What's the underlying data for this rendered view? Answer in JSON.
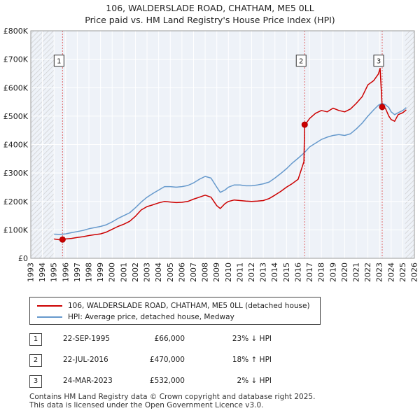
{
  "chart_data": {
    "type": "line",
    "title": "106, WALDERSLADE ROAD, CHATHAM, ME5 0LL",
    "subtitle": "Price paid vs. HM Land Registry's House Price Index (HPI)",
    "xlabel": "",
    "ylabel": "",
    "xlim": [
      1993,
      2026
    ],
    "ylim": [
      0,
      800000
    ],
    "y_ticks": [
      0,
      100000,
      200000,
      300000,
      400000,
      500000,
      600000,
      700000,
      800000
    ],
    "y_tick_labels": [
      "£0",
      "£100K",
      "£200K",
      "£300K",
      "£400K",
      "£500K",
      "£600K",
      "£700K",
      "£800K"
    ],
    "x_ticks": [
      1993,
      1994,
      1995,
      1996,
      1997,
      1998,
      1999,
      2000,
      2001,
      2002,
      2003,
      2004,
      2005,
      2006,
      2007,
      2008,
      2009,
      2010,
      2011,
      2012,
      2013,
      2014,
      2015,
      2016,
      2017,
      2018,
      2019,
      2020,
      2021,
      2022,
      2023,
      2024,
      2025,
      2026
    ],
    "x_tick_labels": [
      "1993",
      "1994",
      "1995",
      "1996",
      "1997",
      "1998",
      "1999",
      "2000",
      "2001",
      "2002",
      "2003",
      "2004",
      "2005",
      "2006",
      "2007",
      "2008",
      "2009",
      "2010",
      "2011",
      "2012",
      "2013",
      "2014",
      "2015",
      "2016",
      "2017",
      "2018",
      "2019",
      "2020",
      "2021",
      "2022",
      "2023",
      "2024",
      "2025",
      "2026"
    ],
    "grid": true,
    "hatched_ranges": [
      [
        1993,
        1995.0
      ],
      [
        2025.2,
        2026
      ]
    ],
    "series": [
      {
        "name": "106, WALDERSLADE ROAD, CHATHAM, ME5 0LL (detached house)",
        "color": "#cc0000",
        "x": [
          1995.0,
          1995.5,
          1995.73,
          1996.0,
          1996.5,
          1997.0,
          1997.5,
          1998.0,
          1998.5,
          1999.0,
          1999.5,
          2000.0,
          2000.5,
          2001.0,
          2001.5,
          2002.0,
          2002.5,
          2003.0,
          2003.5,
          2004.0,
          2004.5,
          2005.0,
          2005.5,
          2006.0,
          2006.5,
          2007.0,
          2007.5,
          2008.0,
          2008.5,
          2009.0,
          2009.3,
          2009.7,
          2010.0,
          2010.5,
          2011.0,
          2011.5,
          2012.0,
          2012.5,
          2013.0,
          2013.5,
          2014.0,
          2014.5,
          2015.0,
          2015.5,
          2016.0,
          2016.5,
          2016.56,
          2016.6,
          2017.0,
          2017.5,
          2018.0,
          2018.5,
          2019.0,
          2019.5,
          2020.0,
          2020.5,
          2021.0,
          2021.5,
          2022.0,
          2022.5,
          2022.9,
          2023.05,
          2023.23,
          2023.5,
          2023.8,
          2024.0,
          2024.3,
          2024.6,
          2025.0,
          2025.3
        ],
        "values": [
          68000,
          65000,
          66000,
          68000,
          70000,
          73000,
          76000,
          80000,
          83000,
          86000,
          92000,
          102000,
          112000,
          120000,
          130000,
          148000,
          170000,
          182000,
          188000,
          195000,
          200000,
          198000,
          196000,
          197000,
          200000,
          208000,
          215000,
          222000,
          215000,
          185000,
          175000,
          192000,
          200000,
          205000,
          203000,
          201000,
          200000,
          201000,
          203000,
          210000,
          222000,
          235000,
          250000,
          263000,
          278000,
          340000,
          470000,
          470000,
          492000,
          510000,
          520000,
          515000,
          528000,
          520000,
          515000,
          525000,
          545000,
          568000,
          610000,
          625000,
          648000,
          668000,
          532000,
          528000,
          500000,
          488000,
          482000,
          505000,
          512000,
          522000
        ]
      },
      {
        "name": "HPI: Average price, detached house, Medway",
        "color": "#6699cc",
        "x": [
          1995.0,
          1995.5,
          1996.0,
          1996.5,
          1997.0,
          1997.5,
          1998.0,
          1998.5,
          1999.0,
          1999.5,
          2000.0,
          2000.5,
          2001.0,
          2001.5,
          2002.0,
          2002.5,
          2003.0,
          2003.5,
          2004.0,
          2004.5,
          2005.0,
          2005.5,
          2006.0,
          2006.5,
          2007.0,
          2007.5,
          2008.0,
          2008.5,
          2009.0,
          2009.3,
          2009.7,
          2010.0,
          2010.5,
          2011.0,
          2011.5,
          2012.0,
          2012.5,
          2013.0,
          2013.5,
          2014.0,
          2014.5,
          2015.0,
          2015.5,
          2016.0,
          2016.5,
          2017.0,
          2017.5,
          2018.0,
          2018.5,
          2019.0,
          2019.5,
          2020.0,
          2020.5,
          2021.0,
          2021.5,
          2022.0,
          2022.5,
          2022.9,
          2023.2,
          2023.5,
          2023.8,
          2024.0,
          2024.3,
          2024.6,
          2025.0,
          2025.3
        ],
        "values": [
          85000,
          84000,
          86000,
          90000,
          94000,
          98000,
          104000,
          108000,
          112000,
          118000,
          128000,
          140000,
          150000,
          160000,
          178000,
          198000,
          215000,
          228000,
          240000,
          252000,
          252000,
          250000,
          252000,
          256000,
          265000,
          278000,
          288000,
          282000,
          250000,
          232000,
          240000,
          250000,
          258000,
          258000,
          255000,
          255000,
          258000,
          262000,
          268000,
          282000,
          298000,
          315000,
          335000,
          352000,
          370000,
          392000,
          405000,
          418000,
          426000,
          432000,
          435000,
          432000,
          438000,
          455000,
          475000,
          500000,
          522000,
          538000,
          545000,
          540000,
          530000,
          515000,
          505000,
          512000,
          520000,
          530000
        ]
      }
    ],
    "markers": [
      {
        "label": "1",
        "x": 1995.73,
        "value": 66000,
        "box_value": 690000
      },
      {
        "label": "2",
        "x": 2016.56,
        "value": 470000,
        "box_value": 690000
      },
      {
        "label": "3",
        "x": 2023.23,
        "value": 532000,
        "box_value": 690000
      }
    ],
    "legend": {
      "position": "below",
      "entries": [
        {
          "label": "106, WALDERSLADE ROAD, CHATHAM, ME5 0LL (detached house)",
          "color": "#cc0000"
        },
        {
          "label": "HPI: Average price, detached house, Medway",
          "color": "#6699cc"
        }
      ]
    }
  },
  "sales": [
    {
      "num": "1",
      "date": "22-SEP-1995",
      "price": "£66,000",
      "delta": "23% ↓ HPI"
    },
    {
      "num": "2",
      "date": "22-JUL-2016",
      "price": "£470,000",
      "delta": "18% ↑ HPI"
    },
    {
      "num": "3",
      "date": "24-MAR-2023",
      "price": "£532,000",
      "delta": "2% ↓ HPI"
    }
  ],
  "footer": {
    "line1": "Contains HM Land Registry data © Crown copyright and database right 2025.",
    "line2": "This data is licensed under the Open Government Licence v3.0."
  }
}
